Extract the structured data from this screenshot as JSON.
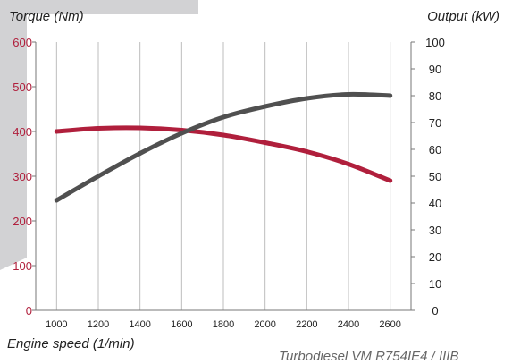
{
  "colors": {
    "background_shape": "#d2d2d4",
    "torque": "#b01f3c",
    "output": "#505050",
    "left_ticks": "#b01f3c",
    "right_ticks": "#222222"
  },
  "labels": {
    "y_left": "Torque (Nm)",
    "y_right": "Output (kW)",
    "x": "Engine speed (1/min)",
    "footnote": "Turbodiesel VM R754IE4 / IIIB"
  },
  "chart_data": {
    "type": "line",
    "title": "",
    "xlabel": "Engine speed (1/min)",
    "ylabel": "Torque (Nm)",
    "ylabel_right": "Output (kW)",
    "x_ticks": [
      1000,
      1200,
      1400,
      1600,
      1800,
      2000,
      2200,
      2400,
      2600
    ],
    "y_left_ticks": [
      0,
      100,
      200,
      300,
      400,
      500,
      600
    ],
    "y_right_ticks": [
      0,
      10,
      20,
      30,
      40,
      50,
      60,
      70,
      80,
      90,
      100
    ],
    "xlim": [
      900,
      2700
    ],
    "ylim_left": [
      0,
      600
    ],
    "ylim_right": [
      0,
      100
    ],
    "grid": "vertical",
    "series": [
      {
        "axis": "left",
        "color": "#b01f3c",
        "x": [
          1000,
          1200,
          1400,
          1600,
          1800,
          2000,
          2200,
          2400,
          2600
        ],
        "values": [
          400,
          407,
          408,
          403,
          392,
          375,
          355,
          327,
          290
        ]
      },
      {
        "axis": "right",
        "color": "#505050",
        "x": [
          1000,
          1200,
          1400,
          1600,
          1800,
          2000,
          2200,
          2400,
          2600
        ],
        "values": [
          41,
          50,
          58.5,
          66,
          72,
          76,
          79,
          80.5,
          80
        ]
      }
    ]
  }
}
